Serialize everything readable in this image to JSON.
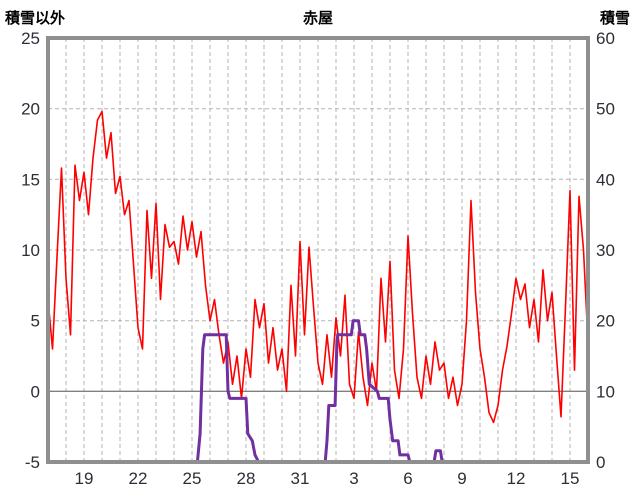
{
  "header": {
    "left_label": "積雪以外",
    "title": "赤屋",
    "right_label": "積雪"
  },
  "colors": {
    "grid": "#b3b3b3",
    "zero_line": "#808080",
    "border": "#8f8f8f",
    "tick_text": "#2e2e38",
    "red_series": "#ff0000",
    "purple_series": "#7030a0"
  },
  "chart_data": {
    "type": "line",
    "title": "赤屋",
    "legend": "none",
    "grid": "dashed vertical daily lines and dashed horizontal lines, solid gray line at left-axis 0",
    "left_axis": {
      "label": "積雪以外",
      "min": -5,
      "max": 25,
      "ticks": [
        25,
        20,
        15,
        10,
        5,
        0,
        -5
      ]
    },
    "right_axis": {
      "label": "積雪",
      "min": 0,
      "max": 60,
      "ticks": [
        60,
        50,
        40,
        30,
        20,
        10,
        0
      ]
    },
    "x_axis": {
      "min": 0,
      "max": 30,
      "minor_grid_interval": 1,
      "tick_labels": [
        "19",
        "22",
        "25",
        "28",
        "31",
        "3",
        "6",
        "9",
        "12",
        "15"
      ],
      "tick_positions": [
        2,
        5,
        8,
        11,
        14,
        17,
        20,
        23,
        26,
        29
      ]
    },
    "series": [
      {
        "series_id": "non-snow",
        "name": "積雪以外",
        "axis": "left",
        "color": "#ff0000",
        "width": 1.6,
        "x_start": 0,
        "x_step": 0.25,
        "y_values": [
          6.5,
          3,
          9.5,
          15.8,
          8,
          4,
          16,
          13.5,
          15.5,
          12.5,
          16.5,
          19.2,
          19.8,
          16.5,
          18.3,
          14,
          15.2,
          12.5,
          13.5,
          9,
          4.5,
          3,
          12.8,
          8,
          13.3,
          6.5,
          11.8,
          10.2,
          10.6,
          9,
          12.4,
          10,
          12,
          9.5,
          11.3,
          7.5,
          5,
          6.5,
          4,
          2,
          3.5,
          0.5,
          2.5,
          -0.5,
          3,
          1,
          6.5,
          4.5,
          6.2,
          2,
          4.5,
          1.5,
          3,
          0,
          7.5,
          2.5,
          10.6,
          4,
          10.2,
          6,
          2,
          0.5,
          4,
          1,
          5.2,
          2.5,
          6.8,
          0.5,
          -0.5,
          4.2,
          1,
          -1,
          2,
          0,
          8,
          3.5,
          9.2,
          1.5,
          -0.5,
          3,
          11,
          5.5,
          1,
          -0.5,
          2.5,
          0.5,
          3.5,
          1.5,
          2,
          -0.5,
          1,
          -1,
          0.5,
          5,
          13.5,
          7,
          3,
          1,
          -1.5,
          -2.2,
          -1,
          1.5,
          3.2,
          5.5,
          8,
          6.5,
          7.6,
          4.5,
          6.5,
          3.5,
          8.6,
          5,
          7,
          2.5,
          -1.8,
          6,
          14.2,
          1.5,
          13.8,
          10,
          3.5
        ]
      },
      {
        "series_id": "snow-depth",
        "name": "積雪",
        "axis": "right",
        "color": "#7030a0",
        "width": 3,
        "points": [
          [
            0,
            0
          ],
          [
            8.3,
            0
          ],
          [
            8.45,
            4
          ],
          [
            8.6,
            16
          ],
          [
            8.7,
            18
          ],
          [
            9.9,
            18
          ],
          [
            10.0,
            10
          ],
          [
            10.1,
            9
          ],
          [
            11.0,
            9
          ],
          [
            11.1,
            4
          ],
          [
            11.35,
            3
          ],
          [
            11.5,
            1
          ],
          [
            11.7,
            0
          ],
          [
            15.4,
            0
          ],
          [
            15.5,
            3
          ],
          [
            15.6,
            8
          ],
          [
            15.95,
            8
          ],
          [
            16.05,
            17
          ],
          [
            16.1,
            18
          ],
          [
            16.85,
            18
          ],
          [
            16.95,
            20
          ],
          [
            17.25,
            20
          ],
          [
            17.35,
            18
          ],
          [
            17.6,
            18
          ],
          [
            17.7,
            16
          ],
          [
            17.85,
            11
          ],
          [
            18.3,
            10
          ],
          [
            18.4,
            9
          ],
          [
            18.9,
            9
          ],
          [
            19.0,
            6
          ],
          [
            19.15,
            3
          ],
          [
            19.45,
            3
          ],
          [
            19.55,
            1
          ],
          [
            20.0,
            1
          ],
          [
            20.1,
            0
          ],
          [
            21.45,
            0
          ],
          [
            21.55,
            1.6
          ],
          [
            21.8,
            1.6
          ],
          [
            21.9,
            0
          ],
          [
            30,
            0
          ]
        ]
      }
    ],
    "zero_line": {
      "axis": "left",
      "value": 0
    }
  }
}
